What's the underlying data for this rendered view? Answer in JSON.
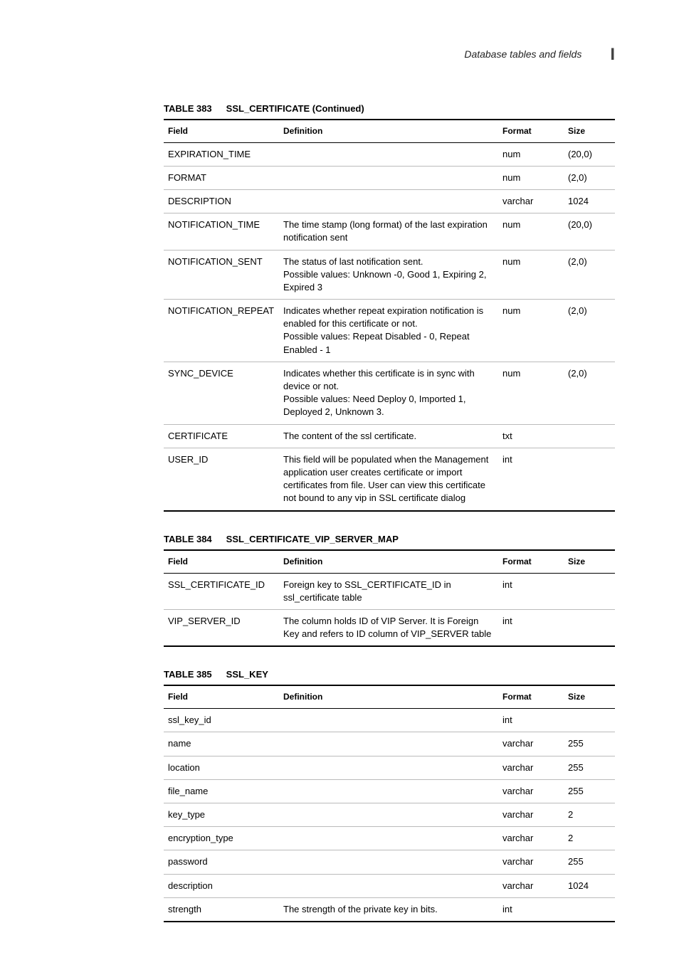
{
  "header": {
    "title": "Database tables and fields",
    "letter": "I"
  },
  "labels": {
    "table_prefix": "TABLE",
    "field": "Field",
    "definition": "Definition",
    "format": "Format",
    "size": "Size"
  },
  "tables": [
    {
      "num": "383",
      "name": "SSL_CERTIFICATE (Continued)",
      "rows": [
        {
          "field": "EXPIRATION_TIME",
          "definition": "",
          "format": "num",
          "size": "(20,0)"
        },
        {
          "field": "FORMAT",
          "definition": "",
          "format": "num",
          "size": "(2,0)"
        },
        {
          "field": "DESCRIPTION",
          "definition": "",
          "format": "varchar",
          "size": "1024"
        },
        {
          "field": "NOTIFICATION_TIME",
          "definition": "The time stamp (long format) of the last expiration notification sent",
          "format": "num",
          "size": "(20,0)"
        },
        {
          "field": "NOTIFICATION_SENT",
          "definition": "The status of last notification sent.\nPossible values: Unknown -0, Good 1, Expiring 2, Expired 3",
          "format": "num",
          "size": "(2,0)"
        },
        {
          "field": "NOTIFICATION_REPEAT",
          "definition": "Indicates whether repeat expiration notification is enabled for this certificate or not.\nPossible values: Repeat Disabled - 0, Repeat Enabled - 1",
          "format": "num",
          "size": "(2,0)"
        },
        {
          "field": "SYNC_DEVICE",
          "definition": "Indicates whether this certificate is in sync with device or not.\nPossible values: Need Deploy 0, Imported 1, Deployed 2, Unknown 3.",
          "format": "num",
          "size": "(2,0)"
        },
        {
          "field": "CERTIFICATE",
          "definition": "The content of the ssl certificate.",
          "format": "txt",
          "size": ""
        },
        {
          "field": "USER_ID",
          "definition": "This field will be populated when the Management application user creates certificate or import certificates from file. User can view this certificate not bound to any vip in SSL certificate dialog",
          "format": "int",
          "size": ""
        }
      ]
    },
    {
      "num": "384",
      "name": "SSL_CERTIFICATE_VIP_SERVER_MAP",
      "rows": [
        {
          "field": "SSL_CERTIFICATE_ID",
          "definition": "Foreign key to SSL_CERTIFICATE_ID in ssl_certificate table",
          "format": "int",
          "size": ""
        },
        {
          "field": "VIP_SERVER_ID",
          "definition": "The column holds ID of VIP Server. It is Foreign Key and refers to ID column of VIP_SERVER table",
          "format": "int",
          "size": ""
        }
      ]
    },
    {
      "num": "385",
      "name": "SSL_KEY",
      "rows": [
        {
          "field": "ssl_key_id",
          "definition": "",
          "format": "int",
          "size": ""
        },
        {
          "field": "name",
          "definition": "",
          "format": "varchar",
          "size": "255"
        },
        {
          "field": "location",
          "definition": "",
          "format": "varchar",
          "size": "255"
        },
        {
          "field": "file_name",
          "definition": "",
          "format": "varchar",
          "size": "255"
        },
        {
          "field": "key_type",
          "definition": "",
          "format": "varchar",
          "size": "2"
        },
        {
          "field": "encryption_type",
          "definition": "",
          "format": "varchar",
          "size": "2"
        },
        {
          "field": "password",
          "definition": "",
          "format": "varchar",
          "size": "255"
        },
        {
          "field": "description",
          "definition": "",
          "format": "varchar",
          "size": "1024"
        },
        {
          "field": "strength",
          "definition": "The strength of the private key in bits.",
          "format": "int",
          "size": ""
        }
      ]
    }
  ]
}
